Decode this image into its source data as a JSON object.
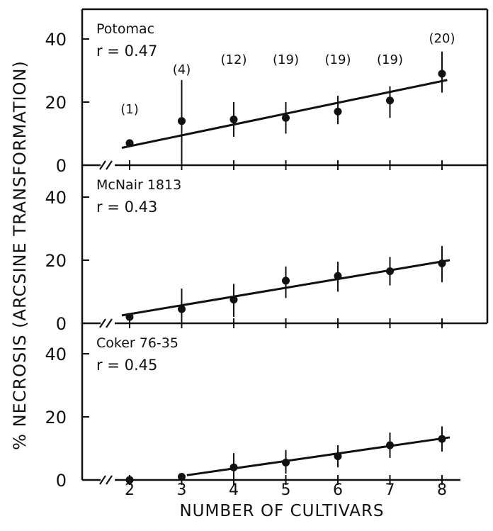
{
  "chart_data": [
    {
      "type": "scatter",
      "title": "",
      "xlabel": "NUMBER OF CULTIVARS",
      "ylabel": "% NECROSIS (ARCSINE TRANSFORMATION)",
      "ylim": [
        0,
        48
      ],
      "xlim": [
        1.5,
        8.9
      ],
      "yticks": [
        "0",
        "20",
        "40"
      ],
      "xticks": [
        "2",
        "3",
        "4",
        "5",
        "6",
        "7",
        "8"
      ],
      "annotations": [
        {
          "text": "Potomac"
        },
        {
          "text": "r = 0.47"
        }
      ],
      "x": [
        2,
        3,
        4,
        5,
        6,
        7,
        8
      ],
      "y": [
        7,
        14,
        14.5,
        15,
        17,
        20.5,
        29
      ],
      "err_low": [
        7,
        0,
        9,
        10,
        13,
        15,
        23
      ],
      "err_high": [
        7,
        27,
        20,
        20,
        22,
        25,
        36
      ],
      "n_labels": [
        "(1)",
        "(4)",
        "(12)",
        "(19)",
        "(19)",
        "(19)",
        "(20)"
      ],
      "fit": {
        "x0": 1.85,
        "y0": 5.5,
        "x1": 8.1,
        "y1": 27
      }
    },
    {
      "type": "scatter",
      "title": "",
      "xlabel": "NUMBER OF CULTIVARS",
      "ylabel": "% NECROSIS (ARCSINE TRANSFORMATION)",
      "ylim": [
        0,
        48
      ],
      "xlim": [
        1.5,
        8.9
      ],
      "yticks": [
        "0",
        "20",
        "40"
      ],
      "xticks": [
        "2",
        "3",
        "4",
        "5",
        "6",
        "7",
        "8"
      ],
      "annotations": [
        {
          "text": "McNair 1813"
        },
        {
          "text": "r = 0.43"
        }
      ],
      "x": [
        2,
        3,
        4,
        5,
        6,
        7,
        8
      ],
      "y": [
        2,
        4.5,
        7.5,
        13.5,
        15,
        16.5,
        19
      ],
      "err_low": [
        2,
        0,
        2,
        8,
        10,
        12,
        13
      ],
      "err_high": [
        2,
        11,
        12.5,
        18,
        19.5,
        21,
        24.5
      ],
      "fit": {
        "x0": 1.85,
        "y0": 2.5,
        "x1": 8.15,
        "y1": 20
      }
    },
    {
      "type": "scatter",
      "title": "",
      "xlabel": "NUMBER OF CULTIVARS",
      "ylabel": "% NECROSIS (ARCSINE TRANSFORMATION)",
      "ylim": [
        0,
        48
      ],
      "xlim": [
        1.5,
        8.9
      ],
      "yticks": [
        "0",
        "20",
        "40"
      ],
      "xticks": [
        "2",
        "3",
        "4",
        "5",
        "6",
        "7",
        "8"
      ],
      "annotations": [
        {
          "text": "Coker 76-35"
        },
        {
          "text": "r = 0.45"
        }
      ],
      "x": [
        2,
        3,
        4,
        5,
        6,
        7,
        8
      ],
      "y": [
        0,
        1,
        4,
        5.5,
        7.5,
        11,
        13
      ],
      "err_low": [
        0,
        1,
        0,
        2,
        4,
        7,
        9
      ],
      "err_high": [
        0,
        1,
        8.5,
        9.5,
        11,
        15,
        17
      ],
      "fit": {
        "x0": 3.1,
        "y0": 1.5,
        "x1": 8.15,
        "y1": 13.5
      }
    }
  ]
}
